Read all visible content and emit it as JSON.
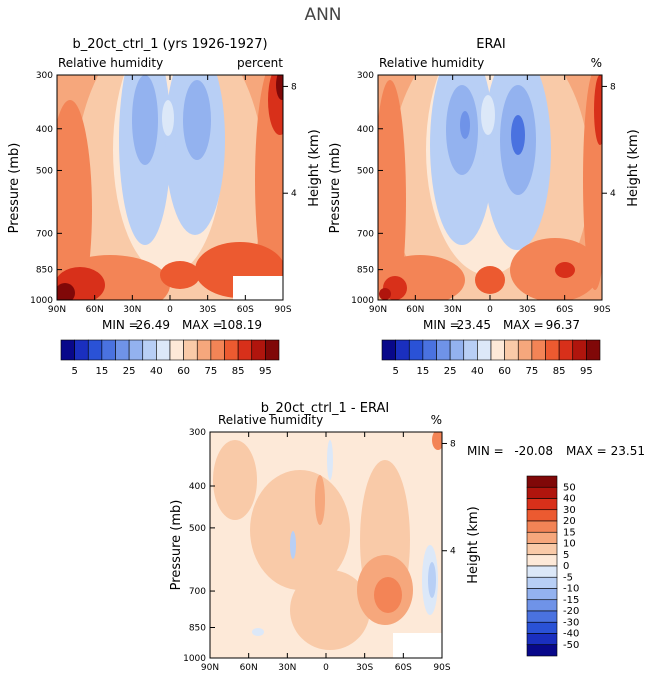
{
  "figure_title": "ANN",
  "chart_data": [
    {
      "type": "heatmap",
      "title": "b_20ct_ctrl_1 (yrs 1926-1927)",
      "subtitle": "Relative humidity",
      "units": "percent",
      "ylabel": "Pressure (mb)",
      "y2label": "Height (km)",
      "xticks": [
        "90N",
        "60N",
        "30N",
        "0",
        "30S",
        "60S",
        "90S"
      ],
      "yticks": [
        "300",
        "400",
        "500",
        "700",
        "850",
        "1000"
      ],
      "y2ticks": [
        "8",
        "4"
      ],
      "stats": {
        "min_label": "MIN =",
        "min": "26.49",
        "max_label": "MAX =",
        "max": "108.19"
      },
      "colorbar_ticks": [
        "5",
        "15",
        "25",
        "40",
        "60",
        "75",
        "85",
        "95"
      ]
    },
    {
      "type": "heatmap",
      "title": "ERAI",
      "subtitle": "Relative humidity",
      "units": "%",
      "ylabel": "Pressure (mb)",
      "y2label": "Height (km)",
      "xticks": [
        "90N",
        "60N",
        "30N",
        "0",
        "30S",
        "60S",
        "90S"
      ],
      "yticks": [
        "300",
        "400",
        "500",
        "700",
        "850",
        "1000"
      ],
      "y2ticks": [
        "8",
        "4"
      ],
      "stats": {
        "min_label": "MIN =",
        "min": "23.45",
        "max_label": "MAX =",
        "max": "96.37"
      },
      "colorbar_ticks": [
        "5",
        "15",
        "25",
        "40",
        "60",
        "75",
        "85",
        "95"
      ]
    },
    {
      "type": "heatmap",
      "title": "b_20ct_ctrl_1 - ERAI",
      "subtitle": "Relative humidity",
      "units": "%",
      "ylabel": "Pressure (mb)",
      "y2label": "Height (km)",
      "xticks": [
        "90N",
        "60N",
        "30N",
        "0",
        "30S",
        "60S",
        "90S"
      ],
      "yticks": [
        "300",
        "400",
        "500",
        "700",
        "850",
        "1000"
      ],
      "y2ticks": [
        "8",
        "4"
      ],
      "stats": {
        "min_label": "MIN =",
        "min": "-20.08",
        "max_label": "MAX =",
        "max": "23.51"
      },
      "colorbar_ticks": [
        "50",
        "40",
        "30",
        "20",
        "15",
        "10",
        "5",
        "0",
        "-5",
        "-10",
        "-15",
        "-20",
        "-30",
        "-40",
        "-50"
      ]
    }
  ],
  "colors": {
    "abs_scale": [
      "#08088a",
      "#1a2fbf",
      "#2a52d6",
      "#4a72e0",
      "#6f93e8",
      "#93b2ef",
      "#b8cff5",
      "#dce8f8",
      "#fde9d8",
      "#f9caa8",
      "#f6a77c",
      "#f38456",
      "#ec5a30",
      "#d8301a",
      "#b0150d",
      "#800808"
    ],
    "diff_scale": [
      "#800808",
      "#b0150d",
      "#d8301a",
      "#ec5a30",
      "#f38456",
      "#f6a77c",
      "#f9caa8",
      "#fde9d8",
      "#dce8f8",
      "#b8cff5",
      "#93b2ef",
      "#6f93e8",
      "#4a72e0",
      "#2a52d6",
      "#1a2fbf",
      "#08088a"
    ]
  }
}
